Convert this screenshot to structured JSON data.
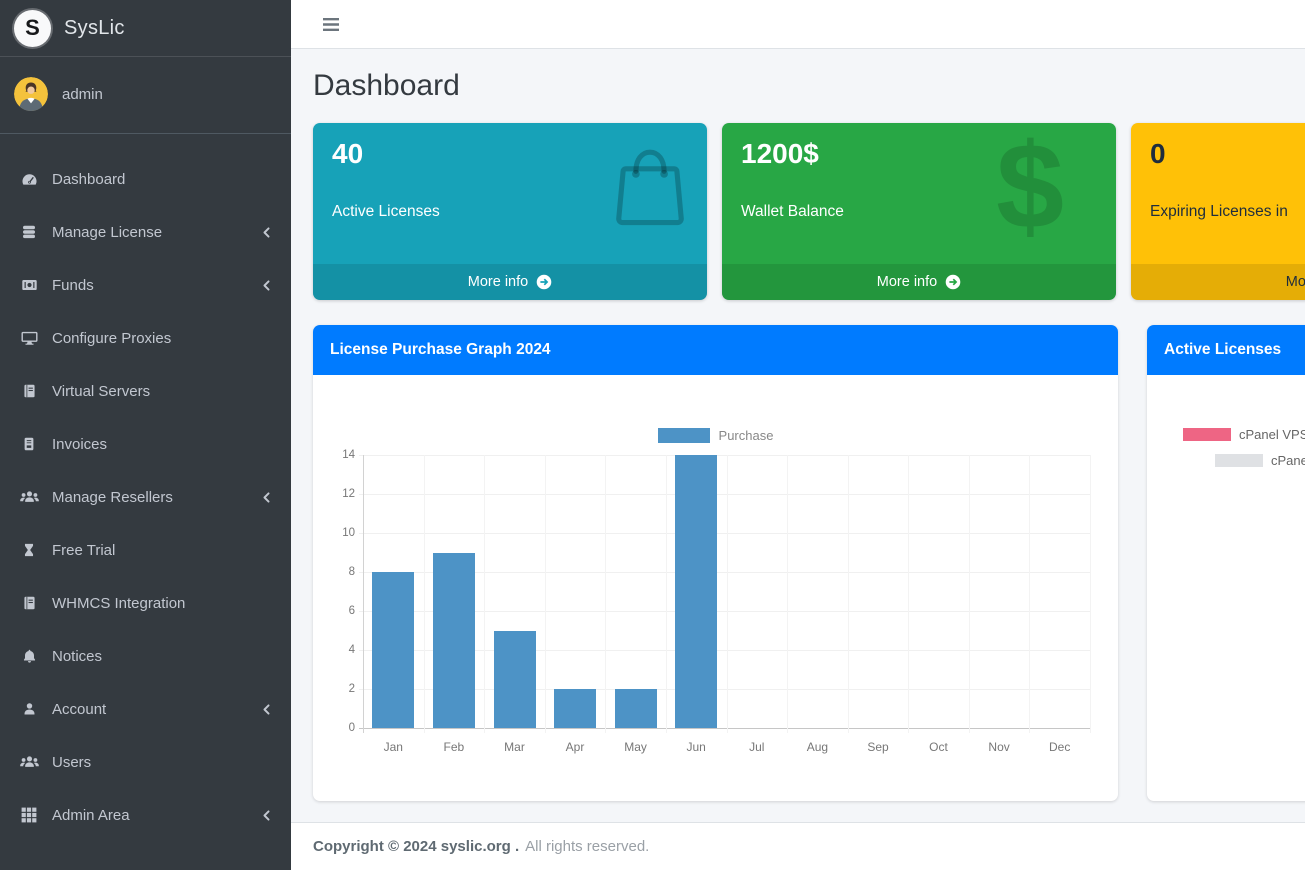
{
  "brand": {
    "logo_letter": "S",
    "name": "SysLic"
  },
  "user": {
    "name": "admin"
  },
  "page": {
    "title": "Dashboard"
  },
  "sidebar": {
    "items": [
      {
        "label": "Dashboard",
        "icon": "tachometer-icon",
        "expandable": false
      },
      {
        "label": "Manage License",
        "icon": "database-icon",
        "expandable": true
      },
      {
        "label": "Funds",
        "icon": "wallet-icon",
        "expandable": true
      },
      {
        "label": "Configure Proxies",
        "icon": "desktop-icon",
        "expandable": false
      },
      {
        "label": "Virtual Servers",
        "icon": "book-icon",
        "expandable": false
      },
      {
        "label": "Invoices",
        "icon": "invoice-icon",
        "expandable": false
      },
      {
        "label": "Manage Resellers",
        "icon": "users-icon",
        "expandable": true
      },
      {
        "label": "Free Trial",
        "icon": "hourglass-icon",
        "expandable": false
      },
      {
        "label": "WHMCS Integration",
        "icon": "book-icon",
        "expandable": false
      },
      {
        "label": "Notices",
        "icon": "bell-icon",
        "expandable": false
      },
      {
        "label": "Account",
        "icon": "user-icon",
        "expandable": true
      },
      {
        "label": "Users",
        "icon": "users-icon",
        "expandable": false
      },
      {
        "label": "Admin Area",
        "icon": "grid-icon",
        "expandable": true
      }
    ]
  },
  "stat_cards": [
    {
      "value": "40",
      "label": "Active Licenses",
      "more_label": "More info",
      "color": "#17a2b8",
      "text_color": "#ffffff",
      "icon": "shopping-bag-icon"
    },
    {
      "value": "1200$",
      "label": "Wallet Balance",
      "more_label": "More info",
      "color": "#28a745",
      "text_color": "#ffffff",
      "icon": "dollar-icon"
    },
    {
      "value": "0",
      "label": "Expiring Licenses in",
      "more_label": "More info",
      "color": "#ffc107",
      "text_color": "#1f2d3d",
      "icon": ""
    }
  ],
  "chart_data": {
    "type": "bar",
    "title": "License Purchase Graph 2024",
    "categories": [
      "Jan",
      "Feb",
      "Mar",
      "Apr",
      "May",
      "Jun",
      "Jul",
      "Aug",
      "Sep",
      "Oct",
      "Nov",
      "Dec"
    ],
    "series": [
      {
        "name": "Purchase",
        "values": [
          8,
          9,
          5,
          2,
          2,
          14,
          0,
          0,
          0,
          0,
          0,
          0
        ]
      }
    ],
    "ylim": [
      0,
      14
    ],
    "yticks": [
      0,
      2,
      4,
      6,
      8,
      10,
      12,
      14
    ],
    "bar_color": "#4d93c6",
    "legend_position": "top",
    "grid": true
  },
  "licenses_panel": {
    "title": "Active Licenses",
    "legend": [
      {
        "label": "cPanel VPS",
        "color": "#ee6584"
      },
      {
        "label": "cPanel",
        "color": "#dfe1e4"
      }
    ]
  },
  "footer": {
    "copyright_bold": "Copyright © 2024 syslic.org .",
    "copyright_rest": "All rights reserved."
  },
  "colors": {
    "primary_header": "#007bff",
    "info_card": "#17a2b8",
    "success_card": "#28a745",
    "warning_card": "#ffc107",
    "sidebar_bg": "#343a40",
    "content_bg": "#f4f6f9",
    "chart_bar": "#4d93c6",
    "pie_pink": "#ee6584",
    "pie_gray": "#dfe1e4"
  }
}
